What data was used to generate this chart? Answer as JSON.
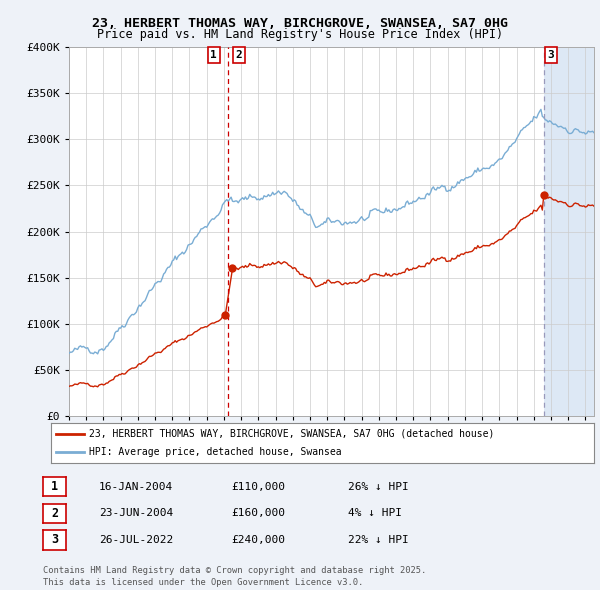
{
  "title_line1": "23, HERBERT THOMAS WAY, BIRCHGROVE, SWANSEA, SA7 0HG",
  "title_line2": "Price paid vs. HM Land Registry's House Price Index (HPI)",
  "ylim": [
    0,
    400000
  ],
  "xlim_start": 1995.0,
  "xlim_end": 2025.5,
  "sale1_date": 2004.04,
  "sale1_price": 110000,
  "sale2_date": 2004.48,
  "sale2_price": 160000,
  "sale3_date": 2022.57,
  "sale3_price": 240000,
  "vline1_x": 2004.26,
  "vline1_color": "#cc0000",
  "vline2_x": 2022.57,
  "vline2_color": "#9999bb",
  "hpi_color": "#7aadd4",
  "price_color": "#cc2200",
  "shade_color": "#dde8f5",
  "legend_label1": "23, HERBERT THOMAS WAY, BIRCHGROVE, SWANSEA, SA7 0HG (detached house)",
  "legend_label2": "HPI: Average price, detached house, Swansea",
  "table_rows": [
    {
      "num": "1",
      "date": "16-JAN-2004",
      "price": "£110,000",
      "rel": "26% ↓ HPI"
    },
    {
      "num": "2",
      "date": "23-JUN-2004",
      "price": "£160,000",
      "rel": "4% ↓ HPI"
    },
    {
      "num": "3",
      "date": "26-JUL-2022",
      "price": "£240,000",
      "rel": "22% ↓ HPI"
    }
  ],
  "footer": "Contains HM Land Registry data © Crown copyright and database right 2025.\nThis data is licensed under the Open Government Licence v3.0.",
  "background_color": "#eef2f8",
  "plot_bg_color": "#ffffff",
  "grid_color": "#cccccc"
}
